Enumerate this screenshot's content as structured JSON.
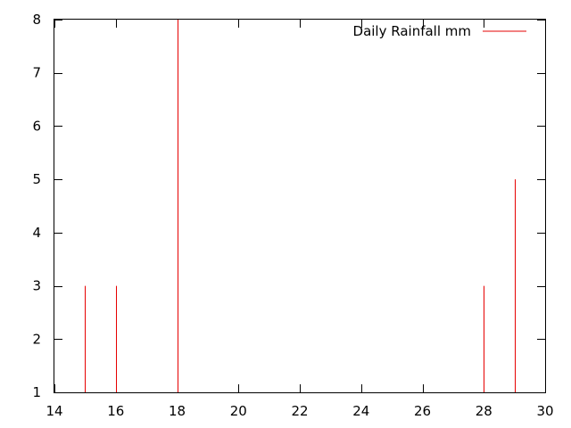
{
  "chart_data": {
    "type": "impulse",
    "title": "",
    "xlabel": "",
    "ylabel": "",
    "xlim": [
      14,
      30
    ],
    "ylim": [
      1,
      8
    ],
    "xticks": [
      14,
      16,
      18,
      20,
      22,
      24,
      26,
      28,
      30
    ],
    "yticks": [
      1,
      2,
      3,
      4,
      5,
      6,
      7,
      8
    ],
    "grid": false,
    "legend": "top-right",
    "series": [
      {
        "name": "Daily Rainfall mm",
        "color": "#e60000",
        "points": [
          {
            "x": 15,
            "y": 3
          },
          {
            "x": 16,
            "y": 3
          },
          {
            "x": 18,
            "y": 8
          },
          {
            "x": 28,
            "y": 3
          },
          {
            "x": 29,
            "y": 5
          }
        ]
      }
    ]
  }
}
